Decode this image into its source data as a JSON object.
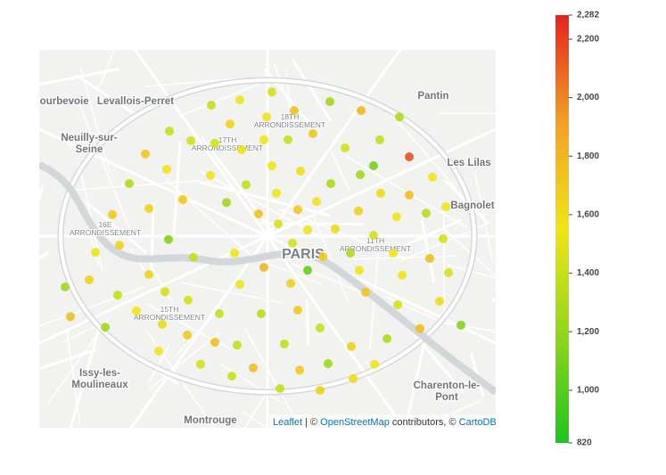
{
  "chart_data": {
    "type": "scatter-map",
    "xlim": [
      2.2,
      2.456
    ],
    "ylim": [
      48.799,
      48.905
    ],
    "x": [
      2.2965,
      2.3125,
      2.3305,
      2.363,
      2.343,
      2.3805,
      2.402,
      2.307,
      2.3275,
      2.273,
      2.285,
      2.2985,
      2.3135,
      2.326,
      2.3395,
      2.3535,
      2.3715,
      2.391,
      2.2595,
      2.2715,
      2.296,
      2.3305,
      2.3465,
      2.3875,
      2.38,
      2.4075,
      2.4205,
      2.2505,
      2.316,
      2.333,
      2.3635,
      2.3915,
      2.4075,
      2.428,
      2.241,
      2.2615,
      2.2805,
      2.305,
      2.323,
      2.345,
      2.3555,
      2.379,
      2.4005,
      2.417,
      2.334,
      2.3505,
      2.366,
      2.3875,
      2.2315,
      2.245,
      2.2725,
      2.3095,
      2.342,
      2.359,
      2.3745,
      2.3985,
      2.4265,
      2.2865,
      2.326,
      2.3505,
      2.3795,
      2.419,
      2.4295,
      2.2145,
      2.228,
      2.2615,
      2.3125,
      2.341,
      2.4035,
      2.244,
      2.2705,
      2.2835,
      2.383,
      2.2545,
      2.301,
      2.3245,
      2.345,
      2.401,
      2.4245,
      2.2175,
      2.237,
      2.269,
      2.283,
      2.3575,
      2.2985,
      2.311,
      2.3375,
      2.375,
      2.395,
      2.4135,
      2.4365,
      2.267,
      2.2905,
      2.32,
      2.346,
      2.362,
      2.388,
      2.308,
      2.335,
      2.3575,
      2.376
    ],
    "y": [
      48.8895,
      48.891,
      48.8932,
      48.8905,
      48.888,
      48.888,
      48.8862,
      48.8842,
      48.8862,
      48.8822,
      48.8795,
      48.8788,
      48.877,
      48.8798,
      48.8798,
      48.8815,
      48.8775,
      48.8798,
      48.8758,
      48.8715,
      48.8698,
      48.8725,
      48.871,
      48.8725,
      48.87,
      48.875,
      48.8693,
      48.8675,
      48.8672,
      48.8648,
      48.8675,
      48.8648,
      48.8643,
      48.861,
      48.8588,
      48.8605,
      48.863,
      48.8622,
      48.859,
      48.8602,
      48.8625,
      48.8598,
      48.8582,
      48.8592,
      48.8562,
      48.8545,
      48.8548,
      48.853,
      48.8482,
      48.8502,
      48.8518,
      48.848,
      48.8508,
      48.847,
      48.848,
      48.848,
      48.852,
      48.8468,
      48.844,
      48.8432,
      48.8432,
      48.8465,
      48.8425,
      48.8385,
      48.8405,
      48.842,
      48.8392,
      48.8395,
      48.8418,
      48.8362,
      48.8372,
      48.8348,
      48.837,
      48.8318,
      48.831,
      48.831,
      48.832,
      48.8335,
      48.8345,
      48.8302,
      48.8272,
      48.828,
      48.825,
      48.827,
      48.823,
      48.8222,
      48.8225,
      48.8218,
      48.824,
      48.8268,
      48.8278,
      48.8205,
      48.8168,
      48.8158,
      48.8152,
      48.817,
      48.8168,
      48.8135,
      48.81,
      48.8095,
      48.8128
    ],
    "values": [
      1400,
      1550,
      1450,
      1250,
      1750,
      1800,
      1300,
      1650,
      1550,
      1400,
      1450,
      1450,
      1550,
      1550,
      1400,
      1700,
      1450,
      1400,
      1700,
      1550,
      1550,
      1550,
      1600,
      1100,
      1250,
      2150,
      1550,
      1300,
      1400,
      1550,
      1300,
      1600,
      1750,
      1550,
      1700,
      1650,
      1700,
      1250,
      1750,
      1700,
      1550,
      1650,
      1550,
      1350,
      1450,
      1550,
      1600,
      1450,
      1550,
      1650,
      1150,
      1550,
      1450,
      1700,
      1300,
      1550,
      1450,
      1400,
      1800,
      1050,
      1550,
      1750,
      1450,
      1250,
      1650,
      1650,
      1550,
      1650,
      1550,
      1400,
      1450,
      1450,
      1700,
      1550,
      1400,
      1350,
      1700,
      1450,
      1600,
      1750,
      1250,
      1600,
      1700,
      1400,
      1750,
      1400,
      1400,
      1650,
      1300,
      1750,
      1150,
      1550,
      1450,
      1750,
      1700,
      1250,
      1550,
      1400,
      1400,
      1650,
      1600
    ],
    "colorscale": [
      "#1ec41e",
      "#8fd61b",
      "#f0e516",
      "#f2a023",
      "#e8221e"
    ],
    "clim": [
      820,
      2282
    ],
    "cticks": [
      820,
      {
        "value": 1000,
        "label": "1,000"
      },
      {
        "value": 1200,
        "label": "1,200"
      },
      {
        "value": 1400,
        "label": "1,400"
      },
      {
        "value": 1600,
        "label": "1,600"
      },
      {
        "value": 1800,
        "label": "1,800"
      },
      {
        "value": 2000,
        "label": "2,000"
      },
      {
        "value": 2200,
        "label": "2,200"
      },
      {
        "value": 2282,
        "label": "2,282"
      }
    ]
  },
  "map": {
    "labels": [
      {
        "lines": [
          "Courbevoie"
        ]
      },
      {
        "lines": [
          "Levallois-Perret"
        ]
      },
      {
        "lines": [
          "Neuilly-sur-",
          "Seine"
        ]
      },
      {
        "lines": [
          "Pantin"
        ]
      },
      {
        "lines": [
          "18TH",
          "ARRONDISSEMENT"
        ]
      },
      {
        "lines": [
          "17TH",
          "ARRONDISSEMENT"
        ]
      },
      {
        "lines": [
          "Les Lilas"
        ]
      },
      {
        "lines": [
          "Bagnolet"
        ]
      },
      {
        "lines": [
          "16E",
          "ARRONDISSEMENT"
        ]
      },
      {
        "lines": [
          "PARIS"
        ]
      },
      {
        "lines": [
          "11TH",
          "ARRONDISSEMENT"
        ]
      },
      {
        "lines": [
          "15TH",
          "ARRONDISSEMENT"
        ]
      },
      {
        "lines": [
          "Issy-les-",
          "Moulineaux"
        ]
      },
      {
        "lines": [
          "Charenton-le-",
          "Pont"
        ]
      },
      {
        "lines": [
          "Montrouge"
        ]
      }
    ],
    "attribution": [
      "Leaflet",
      " | © ",
      "OpenStreetMap",
      " contributors, © ",
      "CartoDB"
    ]
  }
}
